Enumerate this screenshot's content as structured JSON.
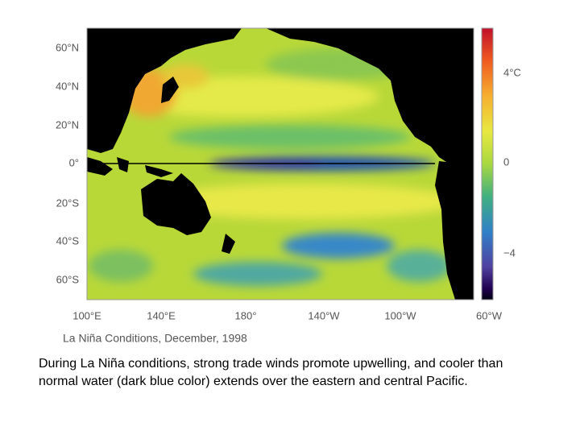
{
  "map": {
    "latitude_labels": [
      "60°N",
      "40°N",
      "20°N",
      "0°",
      "20°S",
      "40°S",
      "60°S"
    ],
    "longitude_labels": [
      "100°E",
      "140°E",
      "180°",
      "140°W",
      "100°W",
      "60°W"
    ],
    "colorbar_labels": [
      "4°C",
      "0",
      "−4"
    ],
    "caption": "La Niña Conditions, December, 1998"
  },
  "slide_text": "During La Niña conditions, strong trade winds promote upwelling, and cooler than normal water (dark blue color) extends over the eastern and central Pacific."
}
